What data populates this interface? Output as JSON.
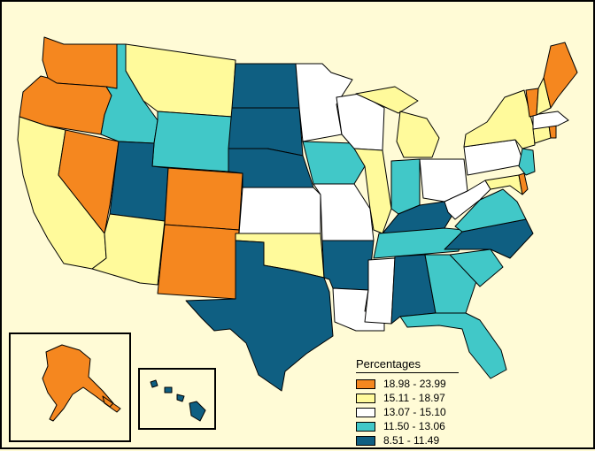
{
  "legend": {
    "title": "Percentages",
    "bins": [
      {
        "label": "18.98 - 23.99",
        "color": "#f5871f"
      },
      {
        "label": "15.11 - 18.97",
        "color": "#fffa9b"
      },
      {
        "label": "13.07 - 15.10",
        "color": "#ffffff"
      },
      {
        "label": "11.50 - 13.06",
        "color": "#41c8c8"
      },
      {
        "label": "8.51 - 11.49",
        "color": "#0f5f82"
      }
    ]
  },
  "states": {
    "WA": 0,
    "OR": 0,
    "NV": 0,
    "CO": 0,
    "NM": 0,
    "ME": 0,
    "VT": 0,
    "RI": 0,
    "DE": 0,
    "AK": 0,
    "CA": 1,
    "AZ": 1,
    "MT": 1,
    "OK": 1,
    "IL": 1,
    "MI": 1,
    "NY": 1,
    "CT": 1,
    "NH": 1,
    "MD": 1,
    "MN": 2,
    "WI": 2,
    "KS": 2,
    "MO": 2,
    "MS": 2,
    "LA": 2,
    "OH": 2,
    "PA": 2,
    "WV": 2,
    "MA": 2,
    "ID": 3,
    "WY": 3,
    "IA": 3,
    "IN": 3,
    "NJ": 3,
    "VA": 3,
    "GA": 3,
    "SC": 3,
    "FL": 3,
    "TN": 3,
    "UT": 4,
    "ND": 4,
    "SD": 4,
    "NE": 4,
    "TX": 4,
    "AR": 4,
    "KY": 4,
    "NC": 4,
    "AL": 4,
    "HI": 4
  }
}
